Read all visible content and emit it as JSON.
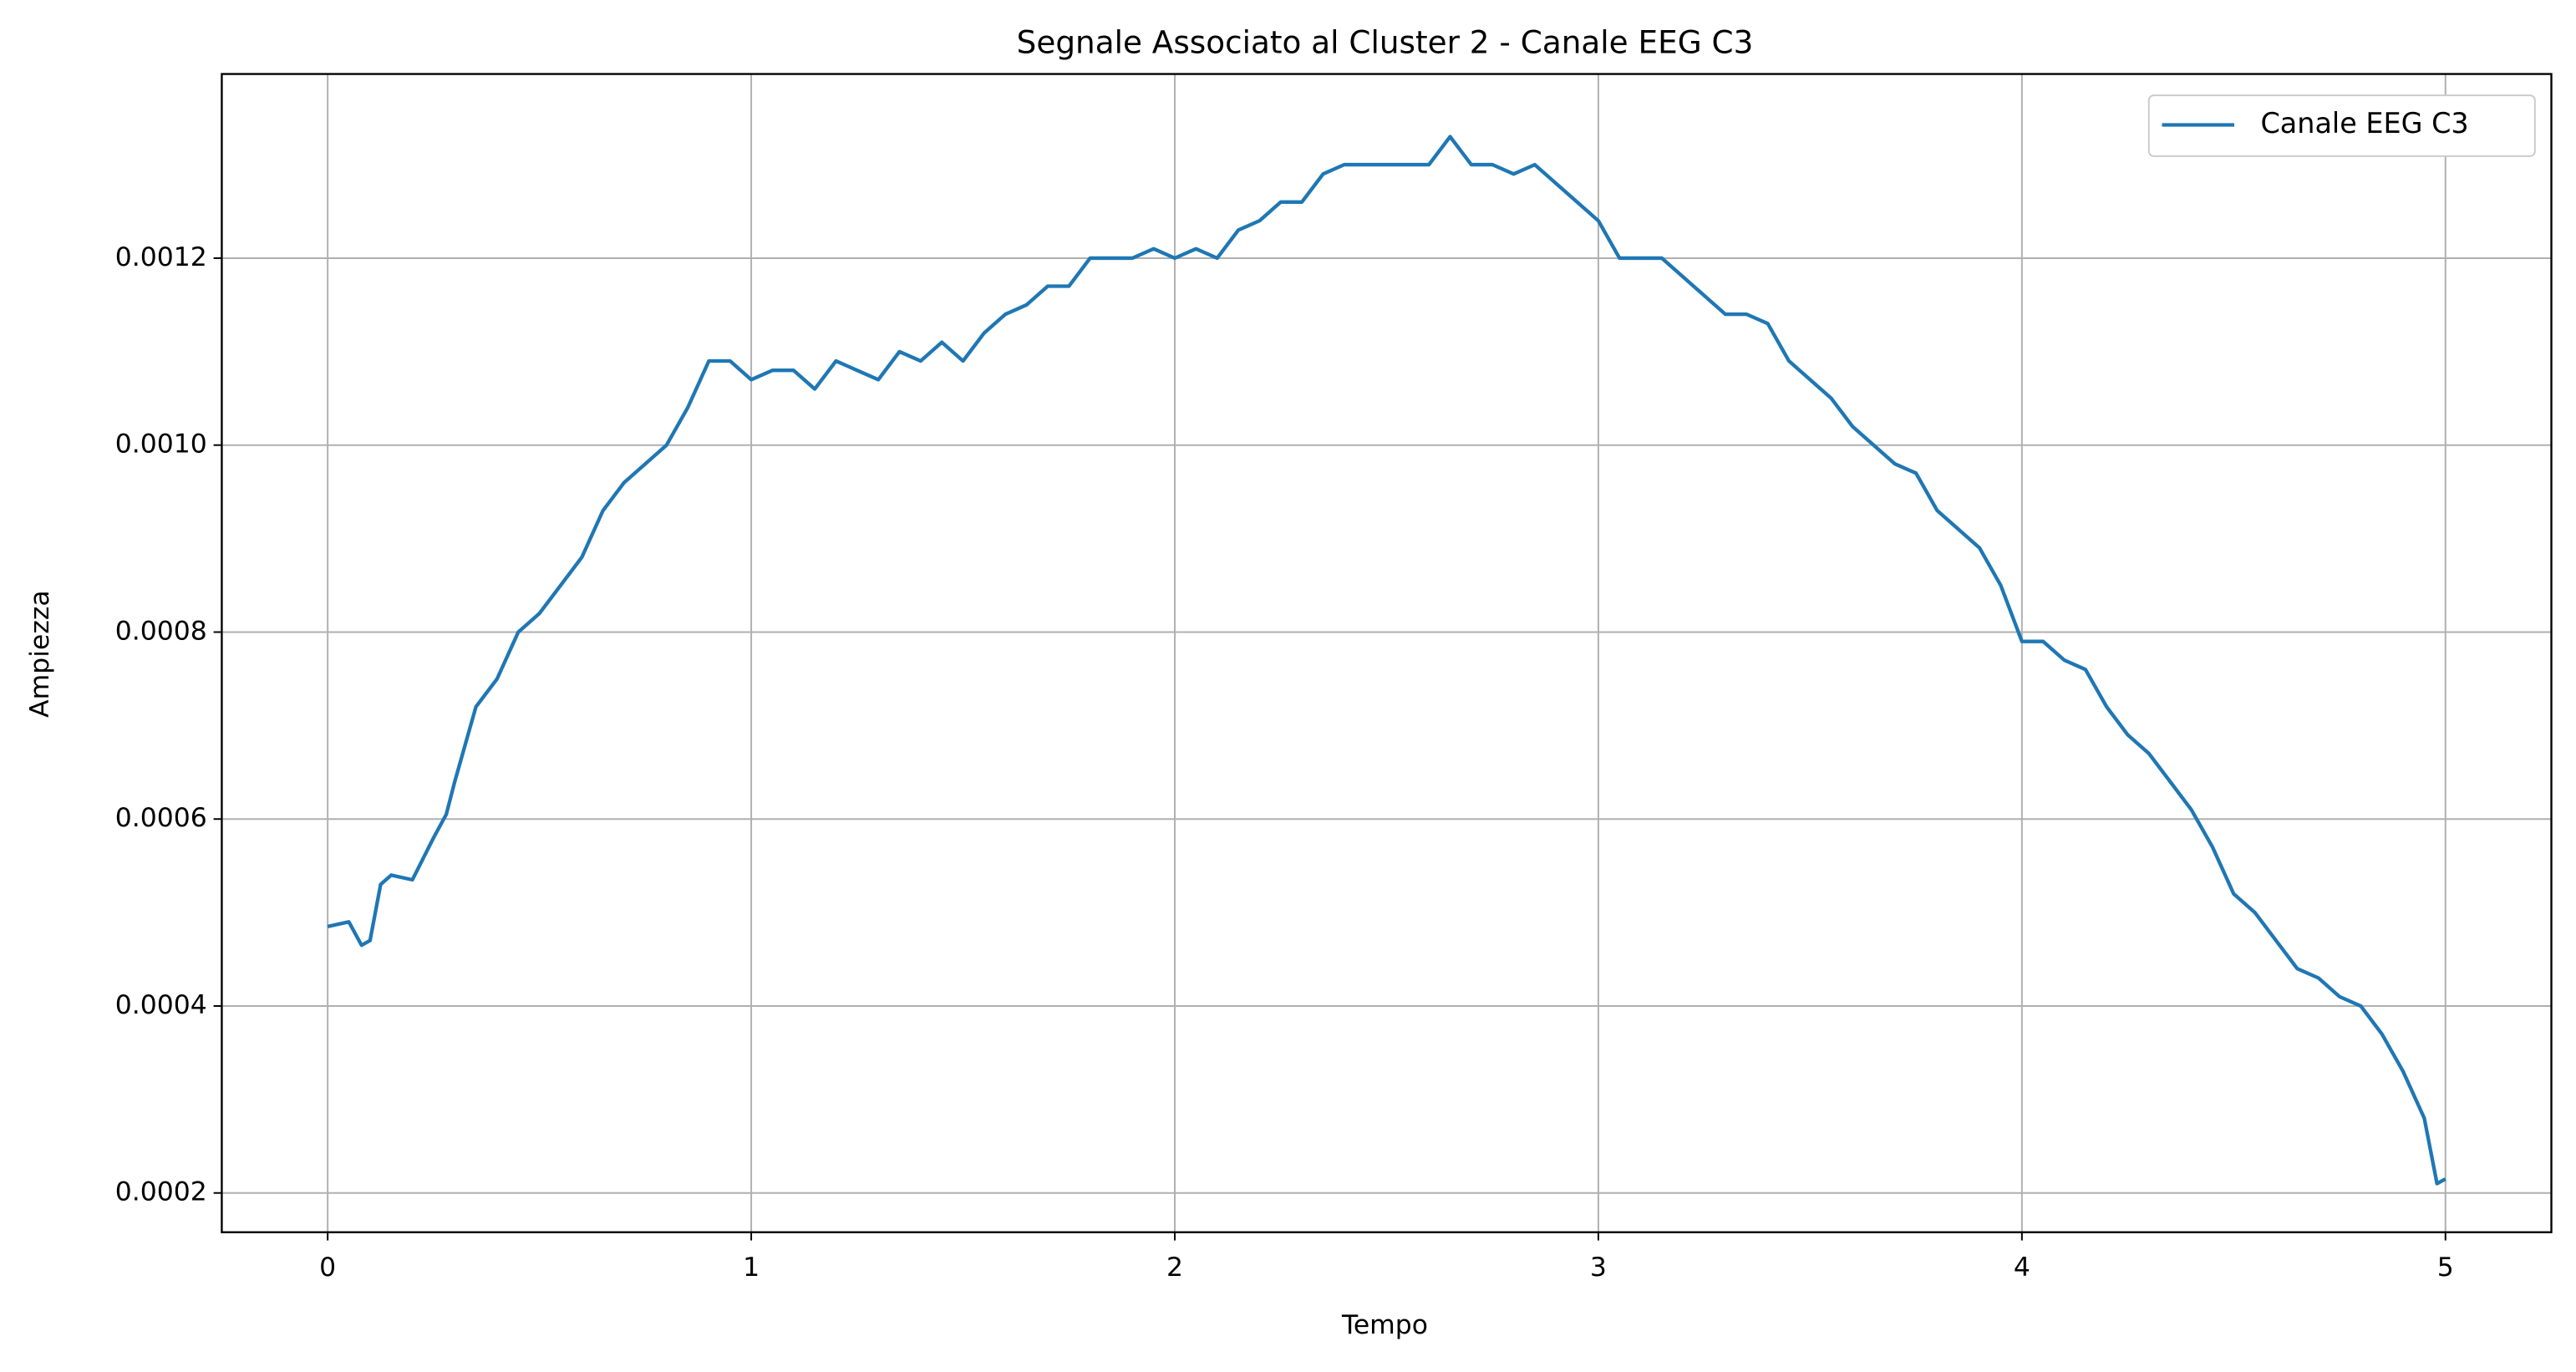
{
  "chart_data": {
    "type": "line",
    "title": "Segnale Associato al Cluster 2 - Canale EEG C3",
    "x_label": "Tempo",
    "y_label": "Ampiezza",
    "x": [
      0,
      0.05,
      0.08,
      0.1,
      0.125,
      0.15,
      0.2,
      0.25,
      0.28,
      0.3,
      0.35,
      0.4,
      0.45,
      0.5,
      0.55,
      0.6,
      0.65,
      0.7,
      0.75,
      0.8,
      0.85,
      0.9,
      0.95,
      1.0,
      1.05,
      1.1,
      1.15,
      1.2,
      1.25,
      1.3,
      1.35,
      1.4,
      1.45,
      1.5,
      1.55,
      1.6,
      1.65,
      1.7,
      1.75,
      1.8,
      1.85,
      1.9,
      1.95,
      2.0,
      2.05,
      2.1,
      2.15,
      2.2,
      2.25,
      2.3,
      2.35,
      2.4,
      2.45,
      2.5,
      2.55,
      2.6,
      2.65,
      2.7,
      2.75,
      2.8,
      2.85,
      2.9,
      2.95,
      3.0,
      3.05,
      3.1,
      3.15,
      3.2,
      3.25,
      3.3,
      3.35,
      3.4,
      3.45,
      3.5,
      3.55,
      3.6,
      3.65,
      3.7,
      3.75,
      3.8,
      3.85,
      3.9,
      3.95,
      4.0,
      4.05,
      4.1,
      4.15,
      4.2,
      4.25,
      4.3,
      4.35,
      4.4,
      4.45,
      4.5,
      4.55,
      4.6,
      4.65,
      4.7,
      4.75,
      4.8,
      4.85,
      4.9,
      4.95,
      4.98,
      5.0
    ],
    "series": [
      {
        "name": "Canale EEG C3",
        "color": "#1f77b4",
        "values": [
          0.000485,
          0.00049,
          0.000465,
          0.00047,
          0.00053,
          0.00054,
          0.000535,
          0.00058,
          0.000605,
          0.00064,
          0.00072,
          0.00075,
          0.0008,
          0.00082,
          0.00085,
          0.00088,
          0.00093,
          0.00096,
          0.00098,
          0.001,
          0.00104,
          0.00109,
          0.00109,
          0.00107,
          0.00108,
          0.00108,
          0.00106,
          0.00109,
          0.00108,
          0.00107,
          0.0011,
          0.00109,
          0.00111,
          0.00109,
          0.00112,
          0.00114,
          0.00115,
          0.00117,
          0.00117,
          0.0012,
          0.0012,
          0.0012,
          0.00121,
          0.0012,
          0.00121,
          0.0012,
          0.00123,
          0.00124,
          0.00126,
          0.00126,
          0.00129,
          0.0013,
          0.0013,
          0.0013,
          0.0013,
          0.0013,
          0.00133,
          0.0013,
          0.0013,
          0.00129,
          0.0013,
          0.00128,
          0.00126,
          0.00124,
          0.0012,
          0.0012,
          0.0012,
          0.00118,
          0.00116,
          0.00114,
          0.00114,
          0.00113,
          0.00109,
          0.00107,
          0.00105,
          0.00102,
          0.001,
          0.00098,
          0.00097,
          0.00093,
          0.00091,
          0.00089,
          0.00085,
          0.00079,
          0.00079,
          0.00077,
          0.00076,
          0.00072,
          0.00069,
          0.00067,
          0.00064,
          0.00061,
          0.00057,
          0.00052,
          0.0005,
          0.00047,
          0.00044,
          0.00043,
          0.00041,
          0.0004,
          0.00037,
          0.00033,
          0.00028,
          0.00021,
          0.000215
        ]
      }
    ],
    "xlim": [
      -0.25,
      5.25
    ],
    "xticks": [
      0,
      1,
      2,
      3,
      4,
      5
    ],
    "ylim": [
      0.000158,
      0.001397
    ],
    "yticks": [
      0.0002,
      0.0004,
      0.0006,
      0.0008,
      {
        "value": 0.001,
        "label": "0.0010"
      },
      0.0012
    ],
    "grid": true,
    "legend": "upper right"
  }
}
